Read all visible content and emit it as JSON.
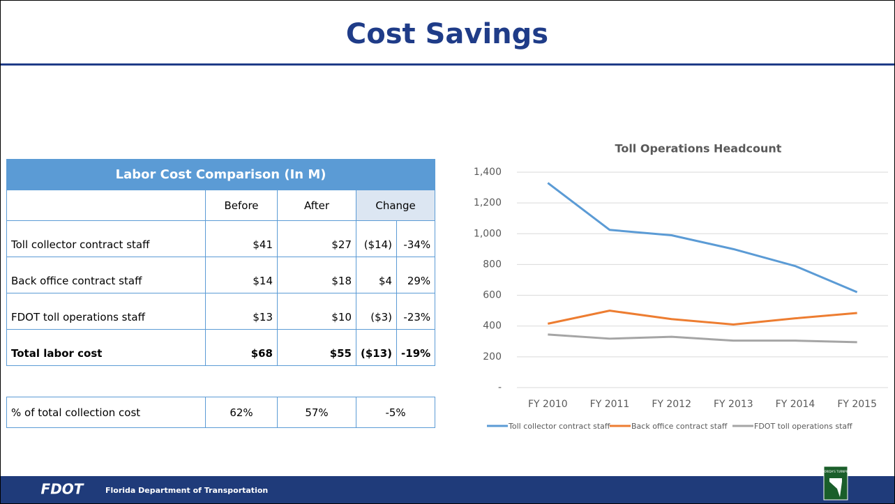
{
  "header": {
    "title": "Cost Savings"
  },
  "table": {
    "caption": "Labor Cost Comparison (In M)",
    "columns": [
      "Before",
      "After",
      "Change"
    ],
    "rows": [
      [
        "Toll collector contract staff",
        "$41",
        "$27",
        "($14)",
        "-34%"
      ],
      [
        "Back office contract staff",
        "$14",
        "$18",
        "$4",
        "29%"
      ],
      [
        "FDOT toll operations staff",
        "$13",
        "$10",
        "($3)",
        "-23%"
      ],
      [
        "Total labor cost",
        "$68",
        "$55",
        "($13)",
        "-19%"
      ]
    ],
    "summary": [
      "% of total collection cost",
      "62%",
      "57%",
      "-5%"
    ]
  },
  "chart_data": {
    "type": "line",
    "title": "Toll Operations Headcount",
    "categories": [
      "FY 2010",
      "FY 2011",
      "FY 2012",
      "FY 2013",
      "FY 2014",
      "FY 2015"
    ],
    "series": [
      {
        "name": "Toll collector contract staff",
        "color": "#5b9bd5",
        "values": [
          1330,
          1025,
          990,
          900,
          790,
          620
        ]
      },
      {
        "name": "Back office contract staff",
        "color": "#ed7d31",
        "values": [
          415,
          500,
          445,
          410,
          450,
          485
        ]
      },
      {
        "name": "FDOT toll operations staff",
        "color": "#a5a5a5",
        "values": [
          345,
          318,
          330,
          305,
          305,
          295
        ]
      }
    ],
    "ylim": [
      0,
      1400
    ],
    "yticks": [
      {
        "value": 0,
        "label": "-"
      },
      200,
      400,
      600,
      800,
      {
        "value": 1000,
        "label": "1,000"
      },
      {
        "value": 1200,
        "label": "1,200"
      },
      {
        "value": 1400,
        "label": "1,400"
      }
    ],
    "grid": true,
    "legend": "bottom"
  },
  "footer": {
    "logo": "FDOT",
    "text": "Florida Department of Transportation",
    "badge": "FLORIDA'S TURNPIKE"
  }
}
